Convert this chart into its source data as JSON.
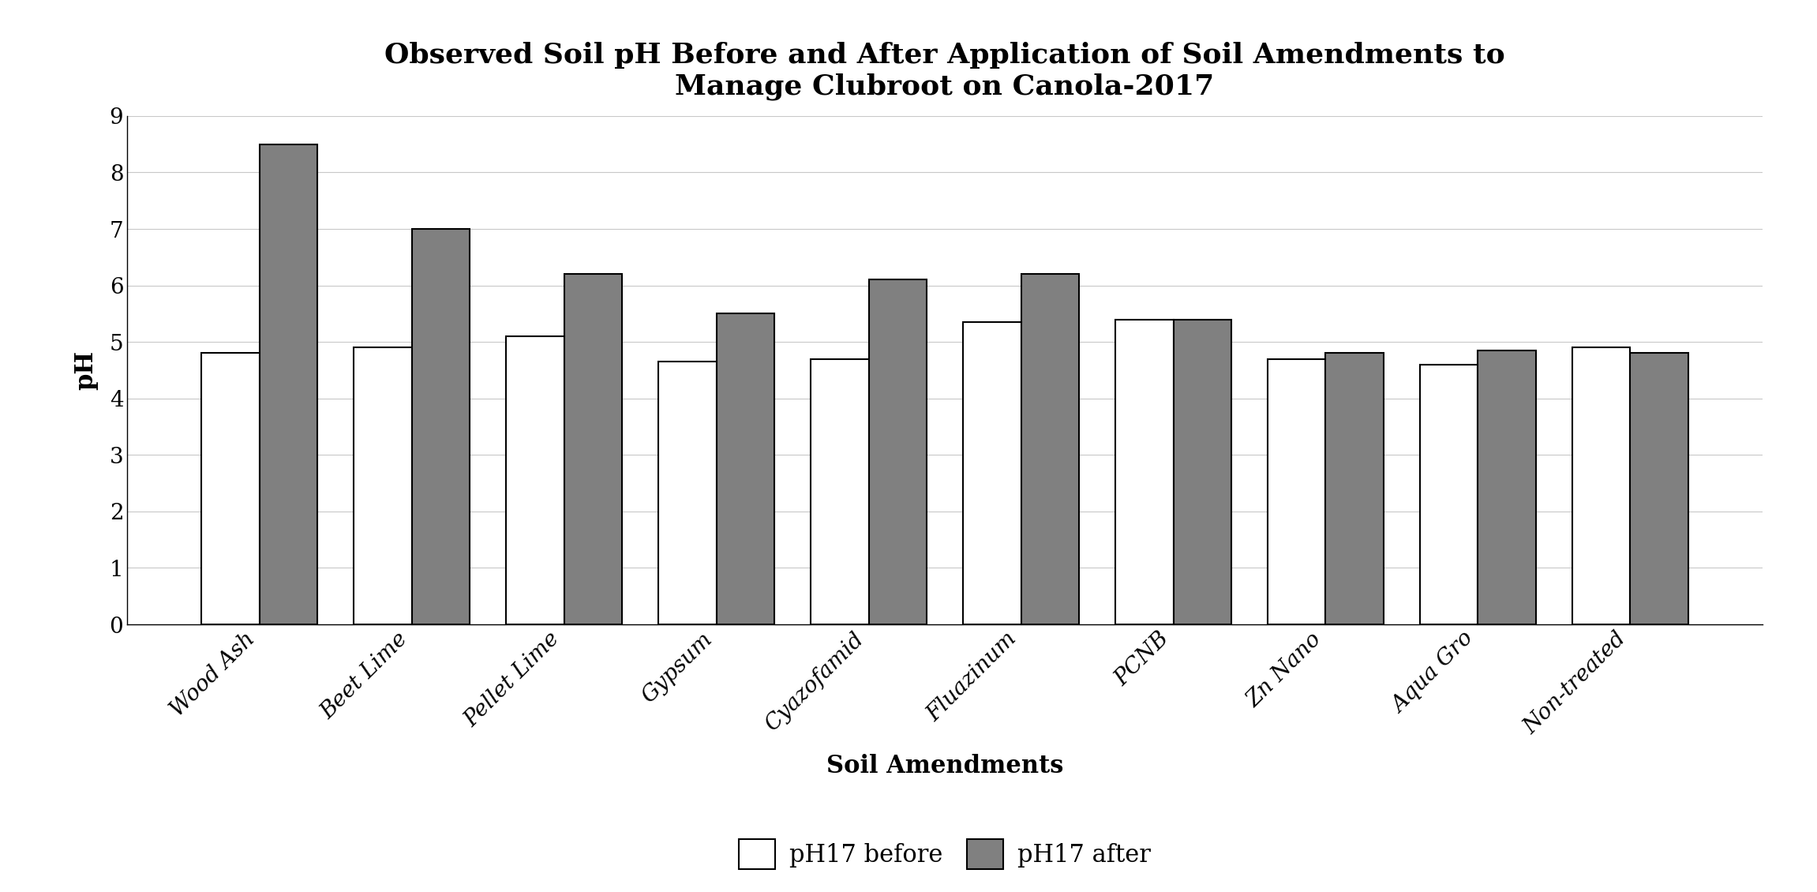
{
  "categories": [
    "Wood Ash",
    "Beet Lime",
    "Pellet Lime",
    "Gypsum",
    "Cyazofamid",
    "Fluazinum",
    "PCNB",
    "Zn Nano",
    "Aqua Gro",
    "Non-treated"
  ],
  "before": [
    4.8,
    4.9,
    5.1,
    4.65,
    4.7,
    5.35,
    5.4,
    4.7,
    4.6,
    4.9
  ],
  "after": [
    8.5,
    7.0,
    6.2,
    5.5,
    6.1,
    6.2,
    5.4,
    4.8,
    4.85,
    4.8
  ],
  "before_color": "#FFFFFF",
  "after_color": "#808080",
  "before_edgecolor": "#000000",
  "after_edgecolor": "#000000",
  "title_line1": "Observed Soil pH Before and After Application of Soil Amendments to",
  "title_line2": "Manage Clubroot on Canola-2017",
  "xlabel": "Soil Amendments",
  "ylabel": "pH",
  "ylim": [
    0,
    9
  ],
  "yticks": [
    0,
    1,
    2,
    3,
    4,
    5,
    6,
    7,
    8,
    9
  ],
  "legend_before": "pH17 before",
  "legend_after": "pH17 after",
  "bar_width": 0.38,
  "title_fontsize": 26,
  "axis_label_fontsize": 22,
  "tick_fontsize": 20,
  "legend_fontsize": 22,
  "grid_color": "#c8c8c8",
  "background_color": "#ffffff"
}
